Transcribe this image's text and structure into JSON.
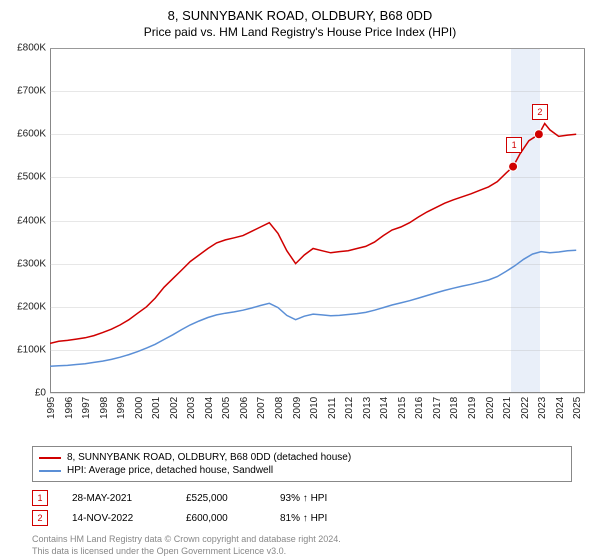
{
  "title": "8, SUNNYBANK ROAD, OLDBURY, B68 0DD",
  "subtitle": "Price paid vs. HM Land Registry's House Price Index (HPI)",
  "chart": {
    "type": "line",
    "background_color": "#ffffff",
    "grid_color": "#cccccc",
    "x_min": 1995,
    "x_max": 2025.5,
    "y_min": 0,
    "y_max": 800000,
    "y_ticks": [
      0,
      100000,
      200000,
      300000,
      400000,
      500000,
      600000,
      700000,
      800000
    ],
    "y_tick_labels": [
      "£0",
      "£100K",
      "£200K",
      "£300K",
      "£400K",
      "£500K",
      "£600K",
      "£700K",
      "£800K"
    ],
    "x_ticks": [
      1995,
      1996,
      1997,
      1998,
      1999,
      2000,
      2001,
      2002,
      2003,
      2004,
      2005,
      2006,
      2007,
      2008,
      2009,
      2010,
      2011,
      2012,
      2013,
      2014,
      2015,
      2016,
      2017,
      2018,
      2019,
      2020,
      2021,
      2022,
      2023,
      2024,
      2025
    ],
    "highlight_band_x": [
      2021.3,
      2022.95
    ],
    "highlight_band_color": "#e9eff9",
    "series": [
      {
        "name": "price_paid",
        "label": "8, SUNNYBANK ROAD, OLDBURY, B68 0DD (detached house)",
        "color": "#d00000",
        "line_width": 1.5,
        "data": [
          [
            1995,
            115000
          ],
          [
            1995.5,
            120000
          ],
          [
            1996,
            122000
          ],
          [
            1996.5,
            125000
          ],
          [
            1997,
            128000
          ],
          [
            1997.5,
            133000
          ],
          [
            1998,
            140000
          ],
          [
            1998.5,
            148000
          ],
          [
            1999,
            158000
          ],
          [
            1999.5,
            170000
          ],
          [
            2000,
            185000
          ],
          [
            2000.5,
            200000
          ],
          [
            2001,
            220000
          ],
          [
            2001.5,
            245000
          ],
          [
            2002,
            265000
          ],
          [
            2002.5,
            285000
          ],
          [
            2003,
            305000
          ],
          [
            2003.5,
            320000
          ],
          [
            2004,
            335000
          ],
          [
            2004.5,
            348000
          ],
          [
            2005,
            355000
          ],
          [
            2005.5,
            360000
          ],
          [
            2006,
            365000
          ],
          [
            2006.5,
            375000
          ],
          [
            2007,
            385000
          ],
          [
            2007.5,
            395000
          ],
          [
            2008,
            370000
          ],
          [
            2008.5,
            330000
          ],
          [
            2009,
            300000
          ],
          [
            2009.5,
            320000
          ],
          [
            2010,
            335000
          ],
          [
            2010.5,
            330000
          ],
          [
            2011,
            325000
          ],
          [
            2011.5,
            328000
          ],
          [
            2012,
            330000
          ],
          [
            2012.5,
            335000
          ],
          [
            2013,
            340000
          ],
          [
            2013.5,
            350000
          ],
          [
            2014,
            365000
          ],
          [
            2014.5,
            378000
          ],
          [
            2015,
            385000
          ],
          [
            2015.5,
            395000
          ],
          [
            2016,
            408000
          ],
          [
            2016.5,
            420000
          ],
          [
            2017,
            430000
          ],
          [
            2017.5,
            440000
          ],
          [
            2018,
            448000
          ],
          [
            2018.5,
            455000
          ],
          [
            2019,
            462000
          ],
          [
            2019.5,
            470000
          ],
          [
            2020,
            478000
          ],
          [
            2020.5,
            490000
          ],
          [
            2021,
            510000
          ],
          [
            2021.4,
            525000
          ],
          [
            2021.8,
            555000
          ],
          [
            2022.3,
            585000
          ],
          [
            2022.87,
            600000
          ],
          [
            2023.2,
            625000
          ],
          [
            2023.5,
            610000
          ],
          [
            2024,
            595000
          ],
          [
            2024.5,
            598000
          ],
          [
            2025,
            600000
          ]
        ]
      },
      {
        "name": "hpi",
        "label": "HPI: Average price, detached house, Sandwell",
        "color": "#5b8fd6",
        "line_width": 1.5,
        "data": [
          [
            1995,
            62000
          ],
          [
            1995.5,
            63000
          ],
          [
            1996,
            64000
          ],
          [
            1996.5,
            66000
          ],
          [
            1997,
            68000
          ],
          [
            1997.5,
            71000
          ],
          [
            1998,
            74000
          ],
          [
            1998.5,
            78000
          ],
          [
            1999,
            83000
          ],
          [
            1999.5,
            89000
          ],
          [
            2000,
            96000
          ],
          [
            2000.5,
            104000
          ],
          [
            2001,
            113000
          ],
          [
            2001.5,
            124000
          ],
          [
            2002,
            135000
          ],
          [
            2002.5,
            147000
          ],
          [
            2003,
            158000
          ],
          [
            2003.5,
            167000
          ],
          [
            2004,
            175000
          ],
          [
            2004.5,
            181000
          ],
          [
            2005,
            185000
          ],
          [
            2005.5,
            188000
          ],
          [
            2006,
            192000
          ],
          [
            2006.5,
            197000
          ],
          [
            2007,
            203000
          ],
          [
            2007.5,
            208000
          ],
          [
            2008,
            198000
          ],
          [
            2008.5,
            180000
          ],
          [
            2009,
            170000
          ],
          [
            2009.5,
            178000
          ],
          [
            2010,
            183000
          ],
          [
            2010.5,
            181000
          ],
          [
            2011,
            179000
          ],
          [
            2011.5,
            180000
          ],
          [
            2012,
            182000
          ],
          [
            2012.5,
            184000
          ],
          [
            2013,
            187000
          ],
          [
            2013.5,
            192000
          ],
          [
            2014,
            198000
          ],
          [
            2014.5,
            204000
          ],
          [
            2015,
            209000
          ],
          [
            2015.5,
            214000
          ],
          [
            2016,
            220000
          ],
          [
            2016.5,
            226000
          ],
          [
            2017,
            232000
          ],
          [
            2017.5,
            238000
          ],
          [
            2018,
            243000
          ],
          [
            2018.5,
            248000
          ],
          [
            2019,
            252000
          ],
          [
            2019.5,
            257000
          ],
          [
            2020,
            262000
          ],
          [
            2020.5,
            270000
          ],
          [
            2021,
            282000
          ],
          [
            2021.5,
            295000
          ],
          [
            2022,
            310000
          ],
          [
            2022.5,
            322000
          ],
          [
            2023,
            328000
          ],
          [
            2023.5,
            325000
          ],
          [
            2024,
            327000
          ],
          [
            2024.5,
            330000
          ],
          [
            2025,
            331000
          ]
        ]
      }
    ],
    "markers": [
      {
        "id": "1",
        "x": 2021.4,
        "y": 525000
      },
      {
        "id": "2",
        "x": 2022.87,
        "y": 600000
      }
    ]
  },
  "transactions": [
    {
      "id": "1",
      "date": "28-MAY-2021",
      "price": "£525,000",
      "delta": "93% ↑ HPI"
    },
    {
      "id": "2",
      "date": "14-NOV-2022",
      "price": "£600,000",
      "delta": "81% ↑ HPI"
    }
  ],
  "footer_line1": "Contains HM Land Registry data © Crown copyright and database right 2024.",
  "footer_line2": "This data is licensed under the Open Government Licence v3.0."
}
